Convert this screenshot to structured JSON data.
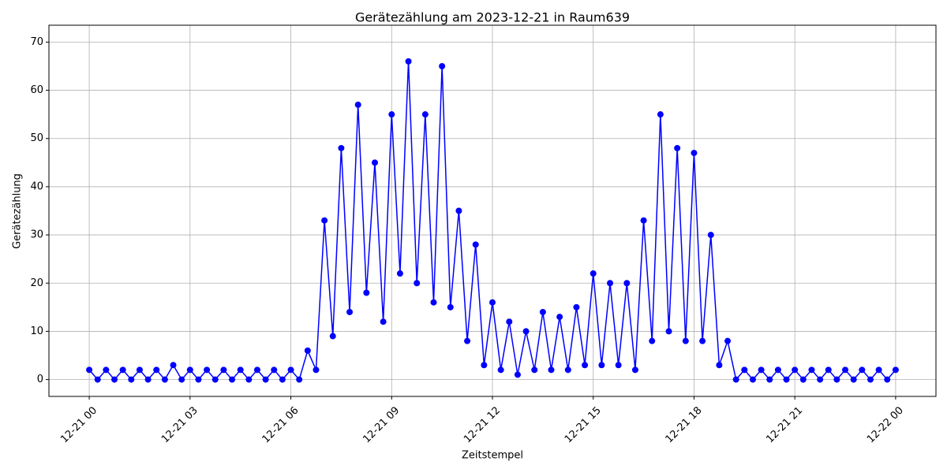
{
  "chart_data": {
    "type": "line",
    "title": "Gerätezählung am 2023-12-21 in Raum639",
    "x_label": "Zeitstempel",
    "y_label": "Gerätezählung",
    "x": [
      0,
      0.25,
      0.5,
      0.75,
      1,
      1.25,
      1.5,
      1.75,
      2,
      2.25,
      2.5,
      2.75,
      3,
      3.25,
      3.5,
      3.75,
      4,
      4.25,
      4.5,
      4.75,
      5,
      5.25,
      5.5,
      5.75,
      6,
      6.25,
      6.5,
      6.75,
      7,
      7.25,
      7.5,
      7.75,
      8,
      8.25,
      8.5,
      8.75,
      9,
      9.25,
      9.5,
      9.75,
      10,
      10.25,
      10.5,
      10.75,
      11,
      11.25,
      11.5,
      11.75,
      12,
      12.25,
      12.5,
      12.75,
      13,
      13.25,
      13.5,
      13.75,
      14,
      14.25,
      14.5,
      14.75,
      15,
      15.25,
      15.5,
      15.75,
      16,
      16.25,
      16.5,
      16.75,
      17,
      17.25,
      17.5,
      17.75,
      18,
      18.25,
      18.5,
      18.75,
      19,
      19.25,
      19.5,
      19.75,
      20,
      20.25,
      20.5,
      20.75,
      21,
      21.25,
      21.5,
      21.75,
      22,
      22.25,
      22.5,
      22.75,
      23,
      23.25,
      23.5,
      23.75,
      24
    ],
    "series": [
      {
        "name": "Gerätezählung",
        "color": "#0000ff",
        "values": [
          2,
          0,
          2,
          0,
          2,
          0,
          2,
          0,
          2,
          0,
          3,
          0,
          2,
          0,
          2,
          0,
          2,
          0,
          2,
          0,
          2,
          0,
          2,
          0,
          2,
          0,
          6,
          2,
          33,
          9,
          48,
          14,
          57,
          18,
          45,
          12,
          55,
          22,
          66,
          20,
          55,
          16,
          65,
          15,
          35,
          8,
          28,
          3,
          16,
          2,
          12,
          1,
          10,
          2,
          14,
          2,
          13,
          2,
          15,
          3,
          22,
          3,
          20,
          3,
          20,
          2,
          33,
          8,
          55,
          10,
          48,
          8,
          47,
          8,
          30,
          3,
          8,
          0,
          2,
          0,
          2,
          0,
          2,
          0,
          2,
          0,
          2,
          0,
          2,
          0,
          2,
          0,
          2,
          0,
          2,
          0,
          2
        ]
      }
    ],
    "xlim": [
      -1.2,
      25.2
    ],
    "ylim": [
      -3.5,
      73.5
    ],
    "xticks": [
      {
        "value": 0,
        "label": "12-21 00"
      },
      {
        "value": 3,
        "label": "12-21 03"
      },
      {
        "value": 6,
        "label": "12-21 06"
      },
      {
        "value": 9,
        "label": "12-21 09"
      },
      {
        "value": 12,
        "label": "12-21 12"
      },
      {
        "value": 15,
        "label": "12-21 15"
      },
      {
        "value": 18,
        "label": "12-21 18"
      },
      {
        "value": 21,
        "label": "12-21 21"
      },
      {
        "value": 24,
        "label": "12-22 00"
      }
    ],
    "yticks": [
      0,
      10,
      20,
      30,
      40,
      50,
      60,
      70
    ],
    "grid": true
  }
}
